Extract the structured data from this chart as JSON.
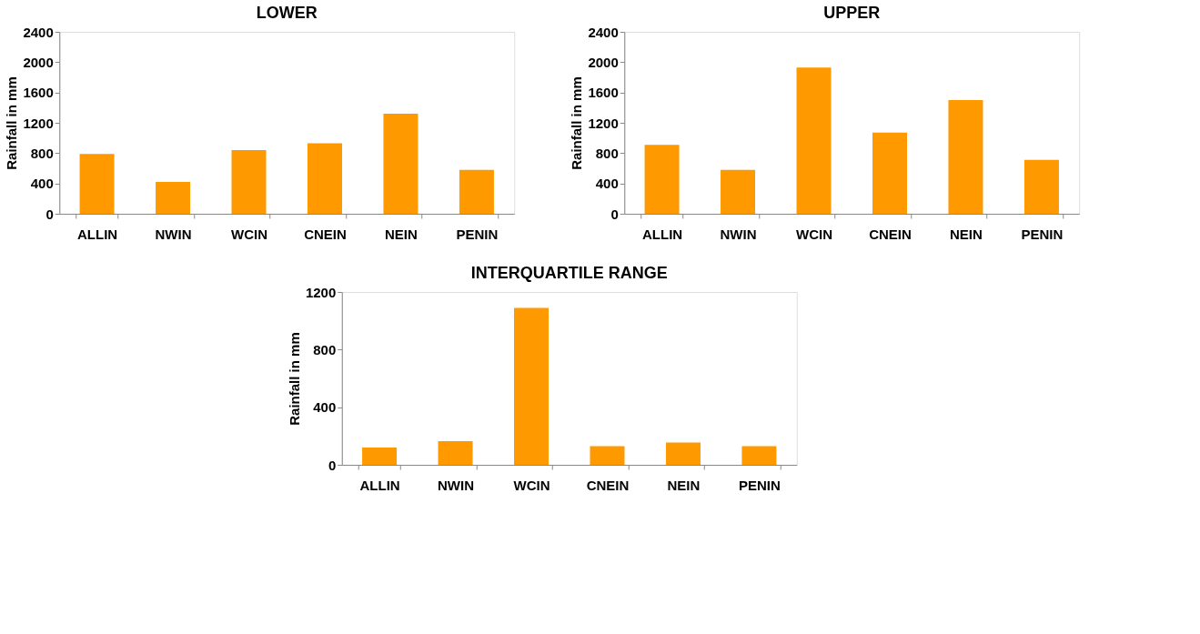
{
  "chart_data": [
    {
      "type": "bar",
      "title": "LOWER",
      "ylabel": "Rainfall in mm",
      "categories": [
        "ALLIN",
        "NWIN",
        "WCIN",
        "CNEIN",
        "NEIN",
        "PENIN"
      ],
      "values": [
        790,
        420,
        840,
        930,
        1320,
        580
      ],
      "color": "#ff9900",
      "ylim": [
        0,
        2400
      ],
      "yticks": [
        0,
        400,
        800,
        1200,
        1600,
        2000,
        2400
      ],
      "grid": false
    },
    {
      "type": "bar",
      "title": "UPPER",
      "ylabel": "Rainfall in mm",
      "categories": [
        "ALLIN",
        "NWIN",
        "WCIN",
        "CNEIN",
        "NEIN",
        "PENIN"
      ],
      "values": [
        910,
        580,
        1930,
        1070,
        1500,
        710
      ],
      "color": "#ff9900",
      "ylim": [
        0,
        2400
      ],
      "yticks": [
        0,
        400,
        800,
        1200,
        1600,
        2000,
        2400
      ],
      "grid": false
    },
    {
      "type": "bar",
      "title": "INTERQUARTILE RANGE",
      "ylabel": "Rainfall in mm",
      "categories": [
        "ALLIN",
        "NWIN",
        "WCIN",
        "CNEIN",
        "NEIN",
        "PENIN"
      ],
      "values": [
        120,
        165,
        1090,
        130,
        155,
        130
      ],
      "color": "#ff9900",
      "ylim": [
        0,
        1200
      ],
      "yticks": [
        0,
        400,
        800,
        1200
      ],
      "grid": false
    }
  ]
}
